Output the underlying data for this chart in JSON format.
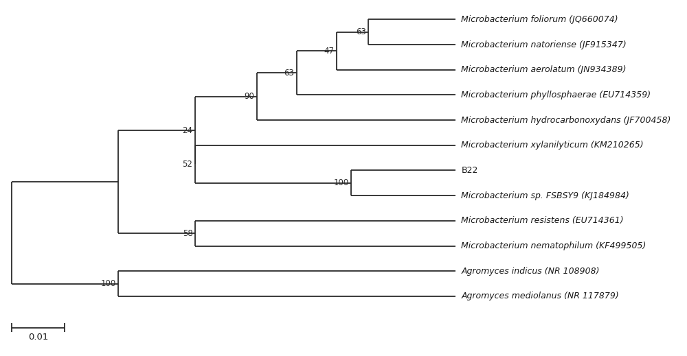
{
  "taxa": [
    "Microbacterium foliorum (JQ660074)",
    "Microbacterium natoriense (JF915347)",
    "Microbacterium aerolatum (JN934389)",
    "Microbacterium phyllosphaerae (EU714359)",
    "Microbacterium hydrocarbonoxydans (JF700458)",
    "Microbacterium xylanilyticum (KM210265)",
    "B22",
    "Microbacterium sp. FSBSY9 (KJ184984)",
    "Microbacterium resistens (EU714361)",
    "Microbacterium nematophilum (KF499505)",
    "Agromyces indicus (NR 108908)",
    "Agromyces mediolanus (NR 117879)"
  ],
  "taxa_italic": [
    true,
    true,
    true,
    true,
    true,
    true,
    false,
    true,
    true,
    true,
    true,
    true
  ],
  "line_color": "#2a2a2a",
  "bg_color": "#ffffff",
  "fontsize_taxa": 9.0,
  "fontsize_bootstrap": 8.5,
  "scalebar_label": "0.01"
}
